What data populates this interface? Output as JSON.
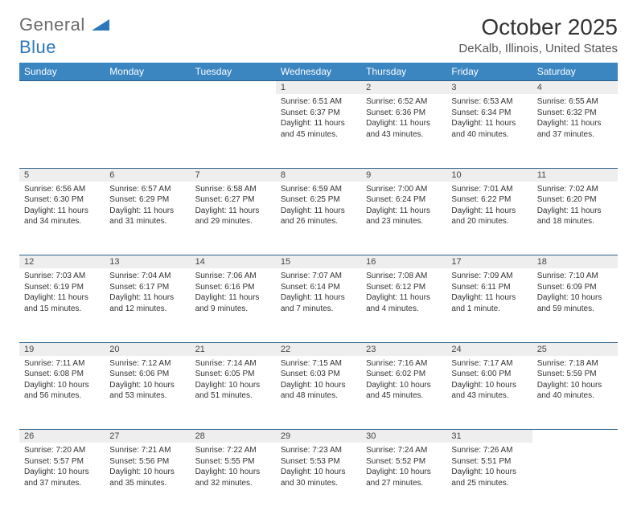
{
  "logo": {
    "part1": "General",
    "part2": "Blue"
  },
  "title": "October 2025",
  "location": "DeKalb, Illinois, United States",
  "colors": {
    "header_bg": "#3b85c0",
    "header_text": "#ffffff",
    "daynum_bg": "#eeeeee",
    "border": "#2b5f8a",
    "logo_gray": "#6b6b6b",
    "logo_blue": "#2b77b9"
  },
  "weekdays": [
    "Sunday",
    "Monday",
    "Tuesday",
    "Wednesday",
    "Thursday",
    "Friday",
    "Saturday"
  ],
  "weeks": [
    [
      null,
      null,
      null,
      {
        "n": "1",
        "sunrise": "6:51 AM",
        "sunset": "6:37 PM",
        "dl": "11 hours and 45 minutes."
      },
      {
        "n": "2",
        "sunrise": "6:52 AM",
        "sunset": "6:36 PM",
        "dl": "11 hours and 43 minutes."
      },
      {
        "n": "3",
        "sunrise": "6:53 AM",
        "sunset": "6:34 PM",
        "dl": "11 hours and 40 minutes."
      },
      {
        "n": "4",
        "sunrise": "6:55 AM",
        "sunset": "6:32 PM",
        "dl": "11 hours and 37 minutes."
      }
    ],
    [
      {
        "n": "5",
        "sunrise": "6:56 AM",
        "sunset": "6:30 PM",
        "dl": "11 hours and 34 minutes."
      },
      {
        "n": "6",
        "sunrise": "6:57 AM",
        "sunset": "6:29 PM",
        "dl": "11 hours and 31 minutes."
      },
      {
        "n": "7",
        "sunrise": "6:58 AM",
        "sunset": "6:27 PM",
        "dl": "11 hours and 29 minutes."
      },
      {
        "n": "8",
        "sunrise": "6:59 AM",
        "sunset": "6:25 PM",
        "dl": "11 hours and 26 minutes."
      },
      {
        "n": "9",
        "sunrise": "7:00 AM",
        "sunset": "6:24 PM",
        "dl": "11 hours and 23 minutes."
      },
      {
        "n": "10",
        "sunrise": "7:01 AM",
        "sunset": "6:22 PM",
        "dl": "11 hours and 20 minutes."
      },
      {
        "n": "11",
        "sunrise": "7:02 AM",
        "sunset": "6:20 PM",
        "dl": "11 hours and 18 minutes."
      }
    ],
    [
      {
        "n": "12",
        "sunrise": "7:03 AM",
        "sunset": "6:19 PM",
        "dl": "11 hours and 15 minutes."
      },
      {
        "n": "13",
        "sunrise": "7:04 AM",
        "sunset": "6:17 PM",
        "dl": "11 hours and 12 minutes."
      },
      {
        "n": "14",
        "sunrise": "7:06 AM",
        "sunset": "6:16 PM",
        "dl": "11 hours and 9 minutes."
      },
      {
        "n": "15",
        "sunrise": "7:07 AM",
        "sunset": "6:14 PM",
        "dl": "11 hours and 7 minutes."
      },
      {
        "n": "16",
        "sunrise": "7:08 AM",
        "sunset": "6:12 PM",
        "dl": "11 hours and 4 minutes."
      },
      {
        "n": "17",
        "sunrise": "7:09 AM",
        "sunset": "6:11 PM",
        "dl": "11 hours and 1 minute."
      },
      {
        "n": "18",
        "sunrise": "7:10 AM",
        "sunset": "6:09 PM",
        "dl": "10 hours and 59 minutes."
      }
    ],
    [
      {
        "n": "19",
        "sunrise": "7:11 AM",
        "sunset": "6:08 PM",
        "dl": "10 hours and 56 minutes."
      },
      {
        "n": "20",
        "sunrise": "7:12 AM",
        "sunset": "6:06 PM",
        "dl": "10 hours and 53 minutes."
      },
      {
        "n": "21",
        "sunrise": "7:14 AM",
        "sunset": "6:05 PM",
        "dl": "10 hours and 51 minutes."
      },
      {
        "n": "22",
        "sunrise": "7:15 AM",
        "sunset": "6:03 PM",
        "dl": "10 hours and 48 minutes."
      },
      {
        "n": "23",
        "sunrise": "7:16 AM",
        "sunset": "6:02 PM",
        "dl": "10 hours and 45 minutes."
      },
      {
        "n": "24",
        "sunrise": "7:17 AM",
        "sunset": "6:00 PM",
        "dl": "10 hours and 43 minutes."
      },
      {
        "n": "25",
        "sunrise": "7:18 AM",
        "sunset": "5:59 PM",
        "dl": "10 hours and 40 minutes."
      }
    ],
    [
      {
        "n": "26",
        "sunrise": "7:20 AM",
        "sunset": "5:57 PM",
        "dl": "10 hours and 37 minutes."
      },
      {
        "n": "27",
        "sunrise": "7:21 AM",
        "sunset": "5:56 PM",
        "dl": "10 hours and 35 minutes."
      },
      {
        "n": "28",
        "sunrise": "7:22 AM",
        "sunset": "5:55 PM",
        "dl": "10 hours and 32 minutes."
      },
      {
        "n": "29",
        "sunrise": "7:23 AM",
        "sunset": "5:53 PM",
        "dl": "10 hours and 30 minutes."
      },
      {
        "n": "30",
        "sunrise": "7:24 AM",
        "sunset": "5:52 PM",
        "dl": "10 hours and 27 minutes."
      },
      {
        "n": "31",
        "sunrise": "7:26 AM",
        "sunset": "5:51 PM",
        "dl": "10 hours and 25 minutes."
      },
      null
    ]
  ],
  "labels": {
    "sunrise_prefix": "Sunrise: ",
    "sunset_prefix": "Sunset: ",
    "daylight_prefix": "Daylight: "
  }
}
